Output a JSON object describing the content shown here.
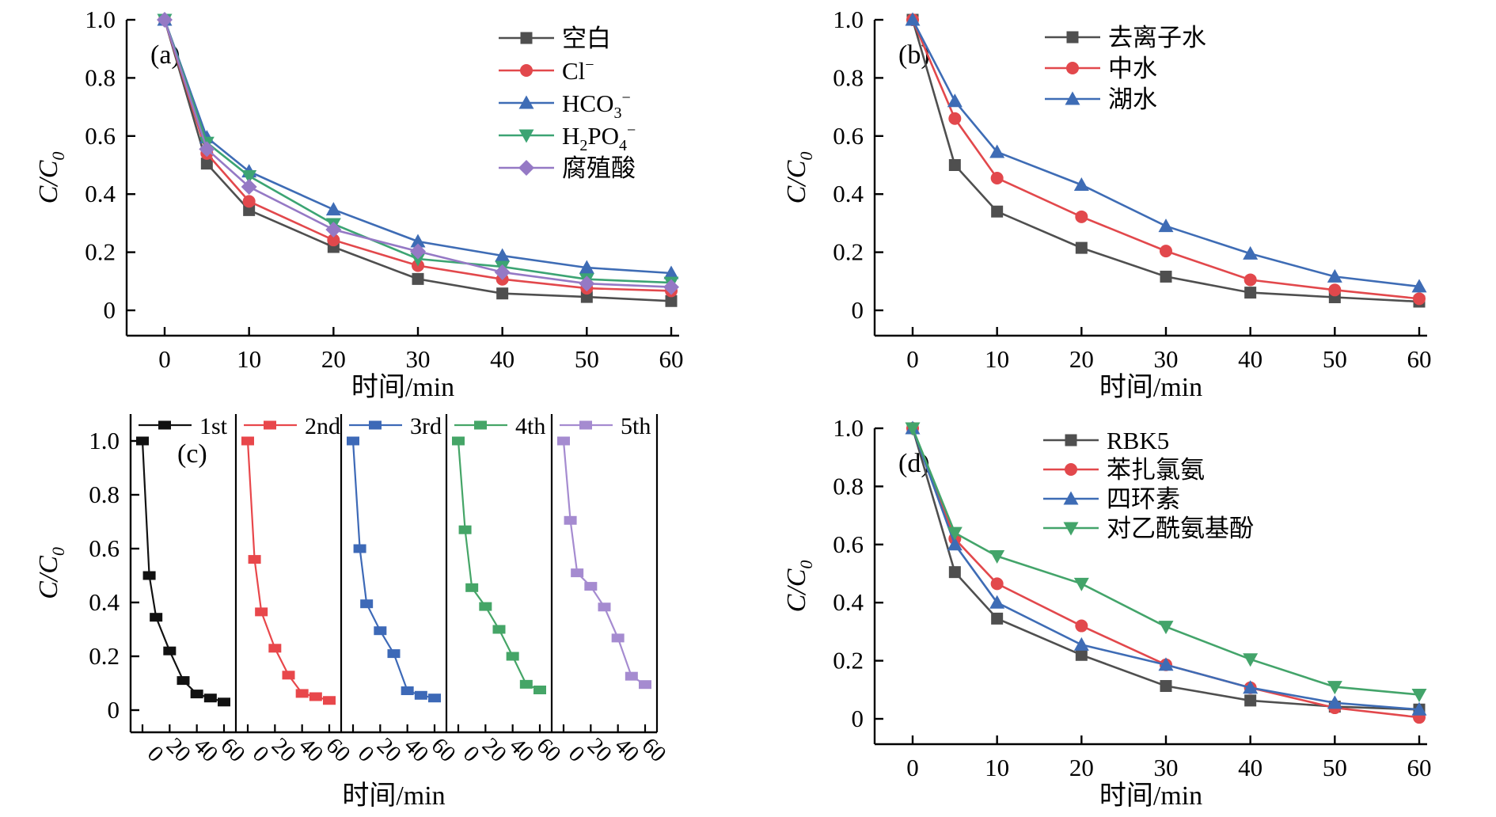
{
  "figure": {
    "background": "#ffffff"
  },
  "chart_data": [
    {
      "id": "a",
      "type": "line",
      "panel_label": "(a)",
      "xlabel": "时间/min",
      "ylabel": "C/C₀",
      "x": [
        0,
        5,
        10,
        20,
        30,
        40,
        50,
        60
      ],
      "xticks": [
        0,
        10,
        20,
        30,
        40,
        50,
        60
      ],
      "yticks": [
        0,
        0.2,
        0.4,
        0.6,
        0.8,
        1.0
      ],
      "xlim": [
        0,
        60
      ],
      "ylim": [
        0,
        1.0
      ],
      "grid": false,
      "legend_position": "upper-right",
      "series": [
        {
          "name": "空白",
          "color": "#4F4F4F",
          "marker": "square",
          "values": [
            1.0,
            0.505,
            0.345,
            0.218,
            0.108,
            0.058,
            0.046,
            0.032
          ]
        },
        {
          "name": "Cl⁻",
          "color": "#E2484C",
          "marker": "circle",
          "values": [
            1.0,
            0.54,
            0.375,
            0.242,
            0.154,
            0.107,
            0.076,
            0.067
          ]
        },
        {
          "name": "HCO₃⁻",
          "color": "#3E6CB5",
          "marker": "triangle-up",
          "values": [
            1.0,
            0.595,
            0.478,
            0.347,
            0.237,
            0.188,
            0.147,
            0.128
          ]
        },
        {
          "name": "H₂PO₄⁻",
          "color": "#3CA473",
          "marker": "triangle-down",
          "values": [
            1.0,
            0.577,
            0.462,
            0.297,
            0.177,
            0.15,
            0.107,
            0.095
          ]
        },
        {
          "name": "腐殖酸",
          "color": "#9579C5",
          "marker": "diamond",
          "values": [
            1.0,
            0.555,
            0.425,
            0.278,
            0.203,
            0.131,
            0.092,
            0.08
          ]
        }
      ]
    },
    {
      "id": "b",
      "type": "line",
      "panel_label": "(b)",
      "xlabel": "时间/min",
      "ylabel": "C/C₀",
      "x": [
        0,
        5,
        10,
        20,
        30,
        40,
        50,
        60
      ],
      "xticks": [
        0,
        10,
        20,
        30,
        40,
        50,
        60
      ],
      "yticks": [
        0,
        0.2,
        0.4,
        0.6,
        0.8,
        1.0
      ],
      "xlim": [
        0,
        60
      ],
      "ylim": [
        0,
        1.0
      ],
      "grid": false,
      "legend_position": "upper-right",
      "series": [
        {
          "name": "去离子水",
          "color": "#4F4F4F",
          "marker": "square",
          "values": [
            1.0,
            0.5,
            0.34,
            0.215,
            0.116,
            0.061,
            0.045,
            0.03
          ]
        },
        {
          "name": "中水",
          "color": "#E2484C",
          "marker": "circle",
          "values": [
            1.0,
            0.66,
            0.455,
            0.322,
            0.204,
            0.105,
            0.07,
            0.04
          ]
        },
        {
          "name": "湖水",
          "color": "#3E6CB5",
          "marker": "triangle-up",
          "values": [
            1.0,
            0.72,
            0.545,
            0.432,
            0.29,
            0.195,
            0.116,
            0.082
          ]
        }
      ]
    },
    {
      "id": "c",
      "type": "line-multipanel",
      "panel_label": "(c)",
      "xlabel": "时间/min",
      "ylabel": "C/C₀",
      "x": [
        0,
        5,
        10,
        20,
        30,
        40,
        50,
        60
      ],
      "xticks": [
        0,
        20,
        40,
        60
      ],
      "yticks": [
        0,
        0.2,
        0.4,
        0.6,
        0.8,
        1.0
      ],
      "xlim": [
        0,
        60
      ],
      "ylim": [
        0,
        1.0
      ],
      "grid": false,
      "legend_position": "top-row",
      "series": [
        {
          "name": "1st",
          "color": "#111111",
          "marker": "square",
          "values": [
            1.0,
            0.5,
            0.345,
            0.22,
            0.11,
            0.06,
            0.045,
            0.03
          ]
        },
        {
          "name": "2nd",
          "color": "#E8474B",
          "marker": "square",
          "values": [
            1.0,
            0.56,
            0.365,
            0.23,
            0.13,
            0.062,
            0.05,
            0.036
          ]
        },
        {
          "name": "3rd",
          "color": "#3D69B7",
          "marker": "square",
          "values": [
            1.0,
            0.6,
            0.395,
            0.295,
            0.21,
            0.072,
            0.055,
            0.045
          ]
        },
        {
          "name": "4th",
          "color": "#45A567",
          "marker": "square",
          "values": [
            1.0,
            0.67,
            0.455,
            0.385,
            0.3,
            0.2,
            0.096,
            0.075
          ]
        },
        {
          "name": "5th",
          "color": "#A58BD0",
          "marker": "square",
          "values": [
            1.0,
            0.705,
            0.51,
            0.46,
            0.383,
            0.268,
            0.126,
            0.095
          ]
        }
      ]
    },
    {
      "id": "d",
      "type": "line",
      "panel_label": "(d)",
      "xlabel": "时间/min",
      "ylabel": "C/C₀",
      "x": [
        0,
        5,
        10,
        20,
        30,
        40,
        50,
        60
      ],
      "xticks": [
        0,
        10,
        20,
        30,
        40,
        50,
        60
      ],
      "yticks": [
        0,
        0.2,
        0.4,
        0.6,
        0.8,
        1.0
      ],
      "xlim": [
        0,
        60
      ],
      "ylim": [
        0,
        1.0
      ],
      "grid": false,
      "legend_position": "upper-right",
      "series": [
        {
          "name": "RBK5",
          "color": "#4F4F4F",
          "marker": "square",
          "values": [
            1.0,
            0.505,
            0.345,
            0.22,
            0.113,
            0.063,
            0.042,
            0.032
          ]
        },
        {
          "name": "苯扎氯氨",
          "color": "#E2484C",
          "marker": "circle",
          "values": [
            1.0,
            0.62,
            0.465,
            0.32,
            0.186,
            0.107,
            0.038,
            0.005
          ]
        },
        {
          "name": "四环素",
          "color": "#3E6CB5",
          "marker": "triangle-up",
          "values": [
            1.0,
            0.6,
            0.4,
            0.255,
            0.186,
            0.107,
            0.055,
            0.032
          ]
        },
        {
          "name": "对乙酰氨基酚",
          "color": "#43A46A",
          "marker": "triangle-down",
          "values": [
            1.0,
            0.64,
            0.56,
            0.465,
            0.317,
            0.205,
            0.11,
            0.083
          ]
        }
      ]
    }
  ]
}
